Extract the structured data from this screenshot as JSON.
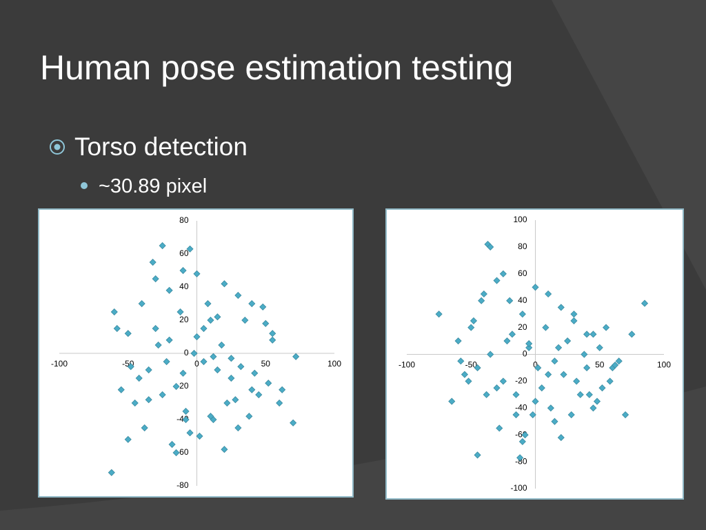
{
  "slide": {
    "title": "Human pose estimation testing",
    "bullets": [
      {
        "text": "Torso detection",
        "sub": [
          "~30.89 pixel"
        ]
      }
    ]
  },
  "chart_data": [
    {
      "type": "scatter",
      "x": [
        -62,
        -25,
        -5,
        70,
        -50,
        72,
        -60,
        -50,
        -40,
        -30,
        -20,
        -10,
        0,
        10,
        20,
        30,
        40,
        50,
        -35,
        -15,
        5,
        25,
        45,
        -45,
        -28,
        -8,
        12,
        32,
        52,
        -55,
        -38,
        -18,
        2,
        22,
        42,
        62,
        -30,
        -12,
        8,
        18,
        28,
        -22,
        -2,
        15,
        35,
        55,
        -42,
        -25,
        -5,
        10,
        38,
        60,
        -48,
        -32,
        -15,
        0,
        20,
        48,
        -20,
        5,
        25,
        -10,
        15,
        -35,
        30,
        -58,
        40,
        -8,
        12,
        55
      ],
      "series": [
        {
          "color": "#4bacc6",
          "values": [
            -72,
            65,
            63,
            -42,
            -52,
            -2,
            25,
            12,
            30,
            45,
            38,
            50,
            10,
            20,
            42,
            35,
            30,
            18,
            -10,
            -20,
            -5,
            -15,
            -25,
            -30,
            5,
            -35,
            -40,
            -8,
            -18,
            -22,
            -45,
            -55,
            -50,
            -30,
            -12,
            -22,
            15,
            25,
            30,
            5,
            -28,
            -5,
            0,
            -10,
            20,
            8,
            -15,
            -25,
            -48,
            -38,
            -38,
            -30,
            -8,
            55,
            -60,
            48,
            -58,
            28,
            8,
            15,
            -3,
            -12,
            22,
            -28,
            -45,
            15,
            -22,
            -40,
            -2,
            12
          ]
        }
      ],
      "xlim": [
        -100,
        100
      ],
      "ylim": [
        -80,
        80
      ],
      "xticks": [
        -100,
        -50,
        0,
        50,
        100
      ],
      "yticks": [
        -80,
        -60,
        -40,
        -20,
        0,
        20,
        40,
        60,
        80
      ]
    },
    {
      "type": "scatter",
      "x": [
        -37,
        -35,
        85,
        70,
        -45,
        -12,
        -75,
        -60,
        -50,
        -40,
        -30,
        -20,
        -10,
        0,
        10,
        20,
        30,
        40,
        50,
        60,
        -55,
        -25,
        5,
        35,
        65,
        -65,
        -15,
        15,
        45,
        -45,
        -35,
        -5,
        25,
        55,
        75,
        -28,
        -8,
        12,
        32,
        52,
        -48,
        -18,
        2,
        22,
        42,
        -38,
        -2,
        18,
        38,
        58,
        -22,
        8,
        28,
        48,
        -58,
        -42,
        -10,
        20,
        -30,
        0,
        30,
        -15,
        15,
        45,
        -52,
        10,
        -25,
        40,
        -5,
        62
      ],
      "series": [
        {
          "color": "#4bacc6",
          "values": [
            82,
            80,
            38,
            -45,
            -75,
            -77,
            30,
            10,
            20,
            45,
            55,
            40,
            30,
            50,
            45,
            35,
            25,
            15,
            5,
            -10,
            -15,
            -20,
            -25,
            -30,
            -5,
            -35,
            -45,
            -50,
            -40,
            -10,
            0,
            5,
            10,
            20,
            15,
            -55,
            -60,
            -40,
            -20,
            -25,
            25,
            15,
            -10,
            -15,
            -30,
            -30,
            -45,
            5,
            0,
            -20,
            10,
            20,
            -45,
            -35,
            -5,
            40,
            -65,
            -62,
            -25,
            -35,
            30,
            -30,
            -5,
            15,
            -20,
            -15,
            60,
            -10,
            8,
            -8
          ]
        }
      ],
      "xlim": [
        -100,
        100
      ],
      "ylim": [
        -100,
        100
      ],
      "xticks": [
        -100,
        -50,
        0,
        50,
        100
      ],
      "yticks": [
        -100,
        -80,
        -60,
        -40,
        -20,
        0,
        20,
        40,
        60,
        80,
        100
      ]
    }
  ]
}
